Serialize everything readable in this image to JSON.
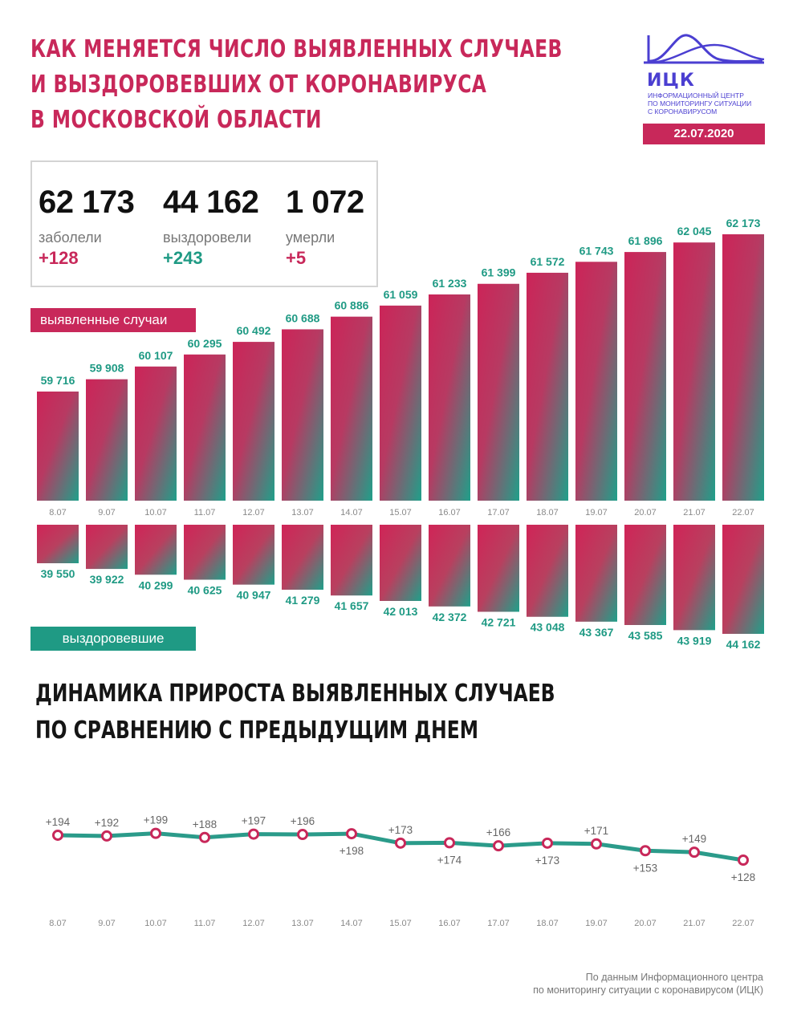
{
  "title": {
    "line1": "КАК МЕНЯЕТСЯ ЧИСЛО ВЫЯВЛЕННЫХ СЛУЧАЕВ",
    "line2": "И ВЫЗДОРОВЕВШИХ ОТ КОРОНАВИРУСА",
    "line3": "В МОСКОВСКОЙ ОБЛАСТИ"
  },
  "logo": {
    "abbr": "ИЦК",
    "caption1": "Информационный центр",
    "caption2": "по мониторингу ситуации",
    "caption3": "с коронавирусом",
    "icon": "wave-logo-icon"
  },
  "date": "22.07.2020",
  "summary": {
    "cases": {
      "value": "62 173",
      "label": "заболели",
      "delta": "+128"
    },
    "recovered": {
      "value": "44 162",
      "label": "выздоровели",
      "delta": "+243"
    },
    "deaths": {
      "value": "1 072",
      "label": "умерли",
      "delta": "+5"
    }
  },
  "labels": {
    "cases_pill": "выявленные случаи",
    "recovered_pill": "выздоровевшие"
  },
  "subtitle": {
    "line1": "ДИНАМИКА ПРИРОСТА ВЫЯВЛЕННЫХ СЛУЧАЕВ",
    "line2": "ПО СРАВНЕНИЮ С ПРЕДЫДУЩИМ ДНЕМ"
  },
  "footer": {
    "line1": "По данным Информационного центра",
    "line2": "по мониторингу ситуации с коронавирусом (ИЦК)"
  },
  "colors": {
    "accent_red": "#c8285a",
    "accent_green": "#1f9a84",
    "brand_blue": "#4b3fd1"
  },
  "chart_data": [
    {
      "type": "bar",
      "categories": [
        "8.07",
        "9.07",
        "10.07",
        "11.07",
        "12.07",
        "13.07",
        "14.07",
        "15.07",
        "16.07",
        "17.07",
        "18.07",
        "19.07",
        "20.07",
        "21.07",
        "22.07"
      ],
      "values": [
        59716,
        59908,
        60107,
        60295,
        60492,
        60688,
        60886,
        61059,
        61233,
        61399,
        61572,
        61743,
        61896,
        62045,
        62173
      ],
      "value_labels": [
        "59 716",
        "59 908",
        "60 107",
        "60 295",
        "60 492",
        "60 688",
        "60 886",
        "61 059",
        "61 233",
        "61 399",
        "61 572",
        "61 743",
        "61 896",
        "62 045",
        "62 173"
      ],
      "ylabel": "выявленные случаи"
    },
    {
      "type": "bar",
      "categories": [
        "8.07",
        "9.07",
        "10.07",
        "11.07",
        "12.07",
        "13.07",
        "14.07",
        "15.07",
        "16.07",
        "17.07",
        "18.07",
        "19.07",
        "20.07",
        "21.07",
        "22.07"
      ],
      "values": [
        39550,
        39922,
        40299,
        40625,
        40947,
        41279,
        41657,
        42013,
        42372,
        42721,
        43048,
        43367,
        43585,
        43919,
        44162
      ],
      "value_labels": [
        "39 550",
        "39 922",
        "40 299",
        "40 625",
        "40 947",
        "41 279",
        "41 657",
        "42 013",
        "42 372",
        "42 721",
        "43 048",
        "43 367",
        "43 585",
        "43 919",
        "44 162"
      ],
      "ylabel": "выздоровевшие"
    },
    {
      "type": "line",
      "categories": [
        "8.07",
        "9.07",
        "10.07",
        "11.07",
        "12.07",
        "13.07",
        "14.07",
        "15.07",
        "16.07",
        "17.07",
        "18.07",
        "19.07",
        "20.07",
        "21.07",
        "22.07"
      ],
      "values": [
        194,
        192,
        199,
        188,
        197,
        196,
        198,
        173,
        174,
        166,
        173,
        171,
        153,
        149,
        128
      ],
      "value_labels": [
        "+194",
        "+192",
        "+199",
        "+188",
        "+197",
        "+196",
        "+198",
        "+173",
        "+174",
        "+166",
        "+173",
        "+171",
        "+153",
        "+149",
        "+128"
      ],
      "label_position": [
        "above",
        "above",
        "above",
        "above",
        "above",
        "above",
        "below",
        "above",
        "below",
        "above",
        "below",
        "above",
        "below",
        "above",
        "below"
      ]
    }
  ]
}
